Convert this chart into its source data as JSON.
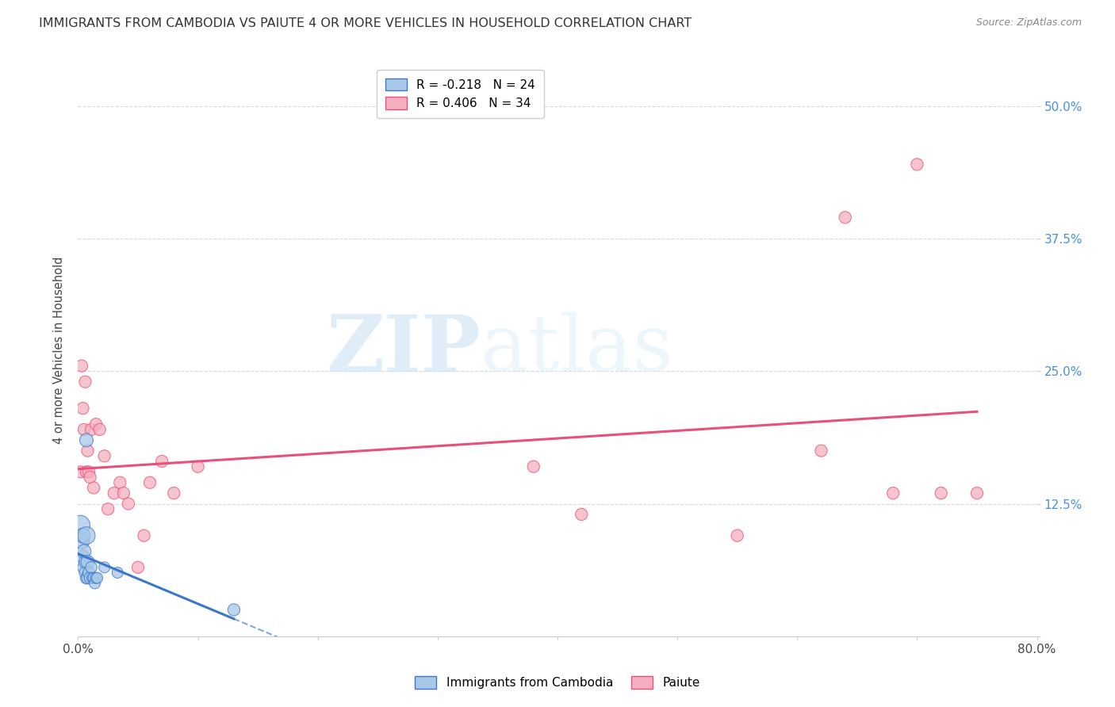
{
  "title": "IMMIGRANTS FROM CAMBODIA VS PAIUTE 4 OR MORE VEHICLES IN HOUSEHOLD CORRELATION CHART",
  "source": "Source: ZipAtlas.com",
  "ylabel": "4 or more Vehicles in Household",
  "xlim": [
    0.0,
    0.8
  ],
  "ylim": [
    0.0,
    0.54
  ],
  "xticks": [
    0.0,
    0.1,
    0.2,
    0.3,
    0.4,
    0.5,
    0.6,
    0.7,
    0.8
  ],
  "xticklabels": [
    "0.0%",
    "",
    "",
    "",
    "",
    "",
    "",
    "",
    "80.0%"
  ],
  "yticks": [
    0.0,
    0.125,
    0.25,
    0.375,
    0.5
  ],
  "yticklabels": [
    "",
    "12.5%",
    "25.0%",
    "37.5%",
    "50.0%"
  ],
  "watermark_zip": "ZIP",
  "watermark_atlas": "atlas",
  "legend_label_1": "R = -0.218   N = 24",
  "legend_label_2": "R = 0.406   N = 34",
  "legend_label_cam": "Immigrants from Cambodia",
  "legend_label_pai": "Paiute",
  "cambodia_color": "#a8c8e8",
  "paiute_color": "#f4b0c0",
  "cambodia_line_color": "#3a78c9",
  "paiute_line_color": "#e8507a",
  "background_color": "#ffffff",
  "grid_color": "#d8d8d8",
  "ytick_color": "#4a90d9",
  "cambodia_x": [
    0.002,
    0.003,
    0.004,
    0.004,
    0.005,
    0.005,
    0.006,
    0.006,
    0.007,
    0.007,
    0.008,
    0.008,
    0.009,
    0.01,
    0.011,
    0.012,
    0.013,
    0.014,
    0.015,
    0.016,
    0.022,
    0.033,
    0.007,
    0.13
  ],
  "cambodia_y": [
    0.105,
    0.09,
    0.095,
    0.075,
    0.08,
    0.065,
    0.07,
    0.06,
    0.095,
    0.055,
    0.07,
    0.055,
    0.06,
    0.055,
    0.065,
    0.055,
    0.055,
    0.05,
    0.055,
    0.055,
    0.065,
    0.06,
    0.185,
    0.025
  ],
  "cambodia_sizes": [
    300,
    200,
    180,
    150,
    160,
    140,
    130,
    120,
    250,
    120,
    150,
    120,
    120,
    110,
    110,
    100,
    100,
    100,
    100,
    100,
    100,
    100,
    150,
    120
  ],
  "paiute_x": [
    0.002,
    0.003,
    0.004,
    0.005,
    0.006,
    0.007,
    0.008,
    0.009,
    0.01,
    0.011,
    0.013,
    0.015,
    0.018,
    0.022,
    0.025,
    0.03,
    0.035,
    0.038,
    0.042,
    0.05,
    0.055,
    0.06,
    0.07,
    0.08,
    0.1,
    0.38,
    0.42,
    0.55,
    0.62,
    0.64,
    0.68,
    0.7,
    0.72,
    0.75
  ],
  "paiute_y": [
    0.155,
    0.255,
    0.215,
    0.195,
    0.24,
    0.155,
    0.175,
    0.155,
    0.15,
    0.195,
    0.14,
    0.2,
    0.195,
    0.17,
    0.12,
    0.135,
    0.145,
    0.135,
    0.125,
    0.065,
    0.095,
    0.145,
    0.165,
    0.135,
    0.16,
    0.16,
    0.115,
    0.095,
    0.175,
    0.395,
    0.135,
    0.445,
    0.135,
    0.135
  ],
  "paiute_sizes": [
    120,
    120,
    120,
    120,
    120,
    120,
    120,
    120,
    120,
    120,
    120,
    120,
    120,
    120,
    120,
    120,
    120,
    120,
    120,
    120,
    120,
    120,
    120,
    120,
    120,
    120,
    120,
    120,
    120,
    120,
    120,
    120,
    120,
    120
  ]
}
